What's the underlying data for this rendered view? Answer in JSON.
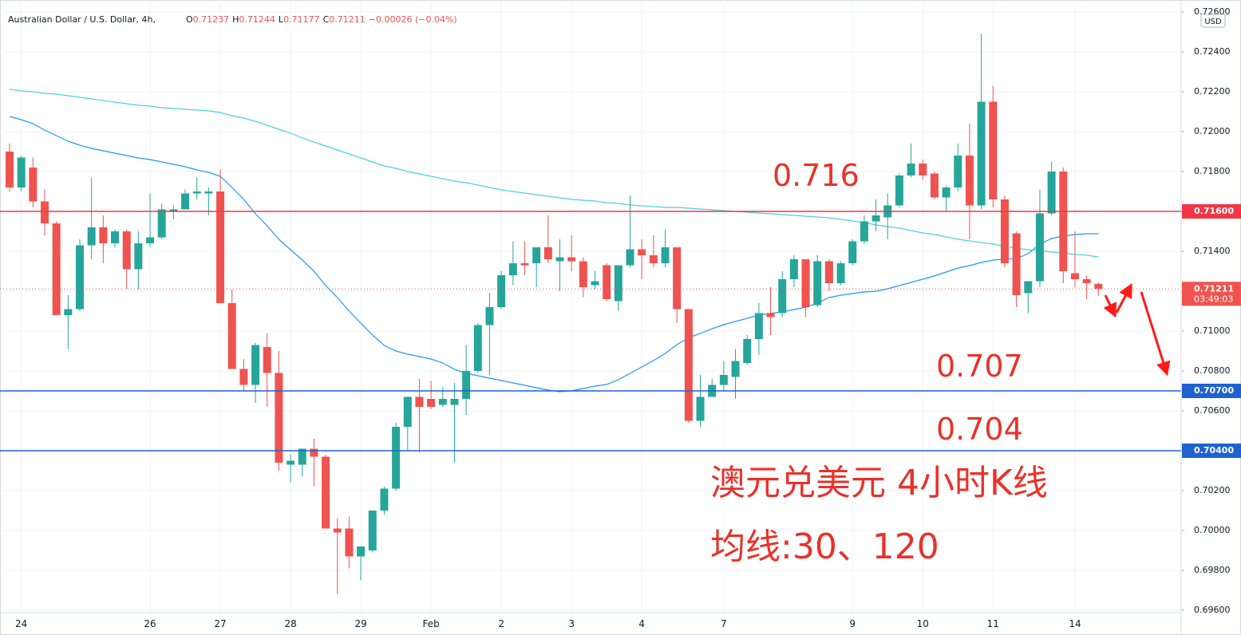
{
  "chart_data": {
    "type": "candlestick",
    "symbol": "Australian Dollar / U.S. Dollar, 4h,",
    "ohlc_header": [
      {
        "label": "O",
        "value": "0.71237"
      },
      {
        "label": "H",
        "value": "0.71244"
      },
      {
        "label": "L",
        "value": "0.71177"
      },
      {
        "label": "C",
        "value": "0.71211"
      }
    ],
    "change": "−0.00026 (−0.04%)",
    "currency": "USD",
    "up_color": "#26a69a",
    "down_color": "#ef5350",
    "categories": [
      null,
      "24",
      null,
      null,
      null,
      null,
      null,
      null,
      null,
      null,
      null,
      null,
      "26",
      null,
      null,
      null,
      null,
      null,
      "27",
      null,
      null,
      null,
      null,
      null,
      "28",
      null,
      null,
      null,
      null,
      null,
      "29",
      null,
      null,
      null,
      null,
      null,
      "Feb",
      null,
      null,
      null,
      null,
      null,
      "2",
      null,
      null,
      null,
      null,
      null,
      "3",
      null,
      null,
      null,
      null,
      null,
      "4",
      null,
      null,
      null,
      null,
      null,
      null,
      "7",
      null,
      null,
      null,
      null,
      null,
      null,
      null,
      null,
      null,
      null,
      "9",
      null,
      null,
      null,
      null,
      null,
      "10",
      null,
      null,
      null,
      null,
      null,
      "11",
      null,
      null,
      null,
      null,
      null,
      null,
      "14",
      null,
      null
    ],
    "open": [
      0.719,
      0.7172,
      0.7182,
      0.7165,
      0.7154,
      0.7108,
      0.7111,
      0.7143,
      0.7152,
      0.7144,
      0.715,
      0.7131,
      0.7144,
      0.7147,
      0.716,
      0.7161,
      0.7169,
      0.7169,
      0.717,
      0.7114,
      0.7081,
      0.7073,
      0.7092,
      0.7079,
      0.7033,
      0.7033,
      0.7041,
      0.7037,
      0.7001,
      0.7001,
      0.6987,
      0.699,
      0.701,
      0.7021,
      0.7052,
      0.7067,
      0.7066,
      0.7063,
      0.7063,
      0.7066,
      0.708,
      0.7103,
      0.7112,
      0.7128,
      0.7134,
      0.7134,
      0.7142,
      0.7135,
      0.7137,
      0.7135,
      0.7123,
      0.7133,
      0.7115,
      0.7133,
      0.7141,
      0.7138,
      0.7134,
      0.7142,
      0.7111,
      0.7055,
      0.7067,
      0.7073,
      0.7077,
      0.7084,
      0.7096,
      0.7109,
      0.7109,
      0.7126,
      0.7136,
      0.7113,
      0.7135,
      0.7124,
      0.7134,
      0.7145,
      0.7155,
      0.7157,
      0.7163,
      0.7178,
      0.7184,
      0.7179,
      0.7167,
      0.7172,
      0.7188,
      0.7163,
      0.7215,
      0.7166,
      0.7149,
      0.7119,
      0.7125,
      0.7159,
      0.718,
      0.7129,
      0.7126,
      0.71237
    ],
    "high": [
      0.7194,
      0.7188,
      0.7187,
      0.7171,
      0.7155,
      0.7118,
      0.7146,
      0.7177,
      0.7158,
      0.7151,
      0.7151,
      0.715,
      0.7169,
      0.7164,
      0.7163,
      0.7171,
      0.7177,
      0.7172,
      0.7181,
      0.7121,
      0.7086,
      0.7094,
      0.7099,
      0.709,
      0.7038,
      0.7041,
      0.7046,
      0.7038,
      0.7006,
      0.7007,
      0.6992,
      0.701,
      0.7022,
      0.7054,
      0.7067,
      0.7076,
      0.7075,
      0.7072,
      0.7074,
      0.7093,
      0.7104,
      0.7119,
      0.713,
      0.7145,
      0.7145,
      0.7142,
      0.7158,
      0.7146,
      0.7148,
      0.7137,
      0.713,
      0.7134,
      0.7133,
      0.7168,
      0.7146,
      0.7148,
      0.7151,
      0.7142,
      0.7111,
      0.7078,
      0.7076,
      0.7085,
      0.7091,
      0.7098,
      0.7114,
      0.7122,
      0.713,
      0.7138,
      0.7136,
      0.7138,
      0.7136,
      0.7135,
      0.7146,
      0.7158,
      0.7166,
      0.7169,
      0.7179,
      0.7194,
      0.7186,
      0.718,
      0.7173,
      0.7194,
      0.7204,
      0.7249,
      0.7223,
      0.7168,
      0.715,
      0.7125,
      0.7171,
      0.7185,
      0.7182,
      0.715,
      0.7128,
      0.71244
    ],
    "low": [
      0.717,
      0.717,
      0.7162,
      0.7148,
      0.7108,
      0.7091,
      0.711,
      0.7136,
      0.7134,
      0.7142,
      0.7121,
      0.7121,
      0.7142,
      0.7146,
      0.7156,
      0.7161,
      0.7166,
      0.7158,
      0.7114,
      0.7081,
      0.707,
      0.7064,
      0.7062,
      0.703,
      0.7024,
      0.7027,
      0.7022,
      0.7001,
      0.6968,
      0.6981,
      0.6975,
      0.6989,
      0.7008,
      0.702,
      0.704,
      0.7039,
      0.7061,
      0.7062,
      0.7034,
      0.7058,
      0.7079,
      0.7078,
      0.7111,
      0.7123,
      0.7128,
      0.7122,
      0.7134,
      0.712,
      0.713,
      0.7117,
      0.7121,
      0.7115,
      0.711,
      0.7132,
      0.7126,
      0.7132,
      0.7132,
      0.7104,
      0.7054,
      0.7052,
      0.7067,
      0.707,
      0.7066,
      0.7083,
      0.7088,
      0.7098,
      0.7107,
      0.7122,
      0.7107,
      0.7112,
      0.712,
      0.7123,
      0.7133,
      0.7144,
      0.715,
      0.7146,
      0.7162,
      0.7177,
      0.7176,
      0.7166,
      0.716,
      0.717,
      0.7146,
      0.7161,
      0.7162,
      0.7132,
      0.7112,
      0.7109,
      0.7122,
      0.7158,
      0.7124,
      0.7122,
      0.7116,
      0.71177
    ],
    "close": [
      0.7172,
      0.7187,
      0.7165,
      0.7154,
      0.7108,
      0.7111,
      0.7143,
      0.7152,
      0.7144,
      0.715,
      0.7131,
      0.7144,
      0.7147,
      0.7161,
      0.7161,
      0.7169,
      0.717,
      0.717,
      0.7114,
      0.7081,
      0.7073,
      0.7093,
      0.7079,
      0.7034,
      0.7035,
      0.7041,
      0.7037,
      0.7001,
      0.6999,
      0.6987,
      0.6992,
      0.701,
      0.7021,
      0.7052,
      0.7067,
      0.7062,
      0.7062,
      0.7066,
      0.7066,
      0.708,
      0.7103,
      0.7112,
      0.7128,
      0.7134,
      0.7133,
      0.7142,
      0.7136,
      0.7137,
      0.7135,
      0.7122,
      0.7125,
      0.7116,
      0.7133,
      0.7141,
      0.7138,
      0.7134,
      0.7142,
      0.7111,
      0.7055,
      0.7067,
      0.7073,
      0.7078,
      0.7085,
      0.7096,
      0.7109,
      0.7107,
      0.7126,
      0.7136,
      0.7112,
      0.7135,
      0.7124,
      0.7134,
      0.7145,
      0.7155,
      0.7158,
      0.7163,
      0.7178,
      0.7184,
      0.7178,
      0.7167,
      0.7172,
      0.7188,
      0.7163,
      0.7215,
      0.7166,
      0.7134,
      0.7118,
      0.7125,
      0.7159,
      0.718,
      0.713,
      0.7126,
      0.7124,
      0.71211
    ],
    "lines": [
      {
        "color": "#2196f3",
        "values": [
          0.72076,
          0.7206,
          0.7204,
          0.72008,
          0.7198,
          0.71952,
          0.71932,
          0.71916,
          0.71904,
          0.71892,
          0.7188,
          0.71868,
          0.7186,
          0.71848,
          0.71836,
          0.71824,
          0.71808,
          0.71796,
          0.71776,
          0.7172,
          0.7166,
          0.71588,
          0.71528,
          0.7146,
          0.71408,
          0.71356,
          0.713,
          0.71228,
          0.71168,
          0.711,
          0.7104,
          0.7098,
          0.70928,
          0.709,
          0.70884,
          0.70872,
          0.7086,
          0.7084,
          0.70808,
          0.70788,
          0.70776,
          0.70764,
          0.70752,
          0.7074,
          0.70728,
          0.70716,
          0.70704,
          0.70696,
          0.707,
          0.70712,
          0.70724,
          0.70732,
          0.70756,
          0.70788,
          0.7082,
          0.70852,
          0.70888,
          0.70932,
          0.70968,
          0.70988,
          0.71012,
          0.71032,
          0.71048,
          0.71064,
          0.7108,
          0.71088,
          0.71096,
          0.71108,
          0.7112,
          0.7114,
          0.71168,
          0.7118,
          0.71188,
          0.71196,
          0.712,
          0.71212,
          0.71228,
          0.71244,
          0.7126,
          0.71276,
          0.71296,
          0.71316,
          0.71328,
          0.71344,
          0.71356,
          0.7136,
          0.71364,
          0.71388,
          0.71436,
          0.71464,
          0.71476,
          0.71484,
          0.71488,
          0.71488
        ]
      },
      {
        "color": "#4dd0e1",
        "values": [
          0.72212,
          0.72204,
          0.722,
          0.72192,
          0.72188,
          0.7218,
          0.72172,
          0.72164,
          0.72156,
          0.72148,
          0.7214,
          0.72132,
          0.72128,
          0.7212,
          0.72116,
          0.72112,
          0.72108,
          0.72104,
          0.72096,
          0.7208,
          0.72068,
          0.72052,
          0.72032,
          0.72012,
          0.71992,
          0.71968,
          0.71948,
          0.71928,
          0.71908,
          0.71888,
          0.71868,
          0.71848,
          0.71828,
          0.71816,
          0.718,
          0.71788,
          0.71776,
          0.71764,
          0.71752,
          0.71744,
          0.71732,
          0.7172,
          0.71708,
          0.717,
          0.71692,
          0.71684,
          0.71676,
          0.71668,
          0.7166,
          0.71656,
          0.71652,
          0.71644,
          0.7164,
          0.71632,
          0.71628,
          0.71624,
          0.7162,
          0.7162,
          0.71616,
          0.71612,
          0.71608,
          0.71604,
          0.716,
          0.71596,
          0.71592,
          0.71588,
          0.71584,
          0.7158,
          0.71576,
          0.71572,
          0.71568,
          0.7156,
          0.71552,
          0.71544,
          0.71532,
          0.71524,
          0.71516,
          0.71504,
          0.71492,
          0.71484,
          0.71472,
          0.7146,
          0.71452,
          0.71444,
          0.71436,
          0.71424,
          0.71416,
          0.71408,
          0.71404,
          0.71396,
          0.71392,
          0.71384,
          0.7138,
          0.71372
        ]
      }
    ],
    "ylim": [
      0.696,
      0.726
    ],
    "yticks": [
      {
        "value": 0.696,
        "label": "0.69600"
      },
      {
        "value": 0.698,
        "label": "0.69800"
      },
      {
        "value": 0.7,
        "label": "0.70000"
      },
      {
        "value": 0.702,
        "label": "0.70200"
      },
      {
        "value": 0.704,
        "label": "0.70400"
      },
      {
        "value": 0.706,
        "label": "0.70600"
      },
      {
        "value": 0.708,
        "label": "0.70800"
      },
      {
        "value": 0.71,
        "label": "0.71000"
      },
      {
        "value": 0.712,
        "label": "0.71200"
      },
      {
        "value": 0.714,
        "label": "0.71400"
      },
      {
        "value": 0.716,
        "label": "0.71600"
      },
      {
        "value": 0.718,
        "label": "0.71800"
      },
      {
        "value": 0.72,
        "label": "0.72000"
      },
      {
        "value": 0.722,
        "label": "0.72200"
      },
      {
        "value": 0.724,
        "label": "0.72400"
      },
      {
        "value": 0.726,
        "label": "0.72600"
      }
    ],
    "grid": true,
    "hlines": [
      {
        "value": 0.716,
        "label": "0.71600",
        "color": "#f23645"
      },
      {
        "value": 0.707,
        "label": "0.70700",
        "color": "#1e62d0"
      },
      {
        "value": 0.704,
        "label": "0.70400",
        "color": "#1e62d0"
      }
    ],
    "last_price": {
      "value": 0.71211,
      "label": "0.71211",
      "countdown": "03:49:03",
      "color": "#ef5350"
    },
    "annotations": [
      {
        "text": "0.716"
      },
      {
        "text": "0.707"
      },
      {
        "text": "0.704"
      },
      {
        "text": "澳元兑美元 4小时K线"
      },
      {
        "text": "均线:30、120"
      }
    ]
  }
}
